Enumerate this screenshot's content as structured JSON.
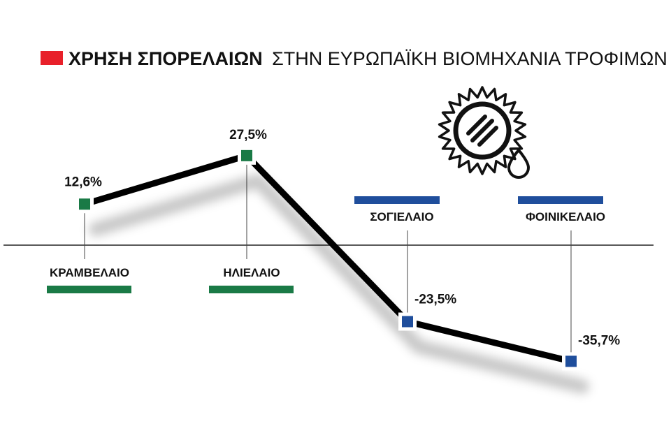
{
  "title": {
    "bold": "ΧΡΗΣΗ ΣΠΟΡΕΛΑΙΩΝ",
    "rest": "ΣΤΗΝ ΕΥΡΩΠΑΪΚΗ ΒΙΟΜΗΧΑΝΙΑ ΤΡΟΦΙΜΩΝ"
  },
  "colors": {
    "title_marker": "#e8202a",
    "positive": "#1a7a46",
    "negative": "#1f4e9c",
    "line": "#000000"
  },
  "icon": "sun-oil-drop-icon",
  "chart_data": {
    "type": "line",
    "categories": [
      "ΚΡΑΜΒΕΛΑΙΟ",
      "ΗΛΙΕΛΑΙΟ",
      "ΣΟΓΙΕΛΑΙΟ",
      "ΦΟΙΝΙΚΕΛΑΙΟ"
    ],
    "values": [
      12.6,
      27.5,
      -23.5,
      -35.7
    ],
    "value_labels": [
      "12,6%",
      "27,5%",
      "-23,5%",
      "-35,7%"
    ],
    "ylim": [
      -40,
      30
    ],
    "grid": false,
    "zero_line": true
  }
}
